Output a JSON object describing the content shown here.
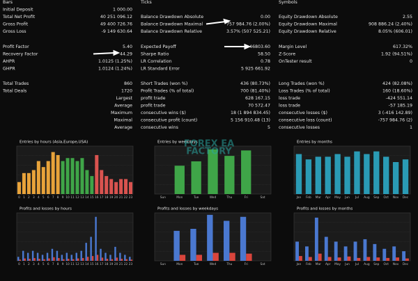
{
  "report": {
    "sections": [
      [
        [
          {
            "label": "Bars"
          },
          {
            "label": "Ticks"
          },
          {
            "label": "Symbols"
          }
        ],
        [
          {
            "label": "Initial Deposit",
            "value": "1 000.00"
          }
        ],
        [
          {
            "label": "Total Net Profit",
            "value": "40 251 096.12"
          },
          {
            "label": "Balance Drawdown Absolute",
            "value": "0.00"
          },
          {
            "label": "Equity Drawdown Absolute",
            "value": "2.55"
          }
        ],
        [
          {
            "label": "Gross Profit",
            "value": "49 400 726.76"
          },
          {
            "label": "Balance Drawdown Maximal",
            "value": "757 984.76 (2.00%)"
          },
          {
            "label": "Equity Drawdown Maximal",
            "value": "908 886.24 (2.40%)"
          }
        ],
        [
          {
            "label": "Gross Loss",
            "value": "-9 149 630.64"
          },
          {
            "label": "Balance Drawdown Relative",
            "value": "3.57% (507 525.21)"
          },
          {
            "label": "Equity Drawdown Relative",
            "value": "8.05% (606.01)"
          }
        ]
      ],
      [
        [
          {
            "label": "Profit Factor",
            "value": "5.40"
          },
          {
            "label": "Expected Payoff",
            "value": "46803.60"
          },
          {
            "label": "Margin Level",
            "value": "617.32%"
          }
        ],
        [
          {
            "label": "Recovery Factor",
            "value": "44.29"
          },
          {
            "label": "Sharpe Ratio",
            "value": "58.50"
          },
          {
            "label": "Z-Score",
            "value": "1.92 (94.51%)"
          }
        ],
        [
          {
            "label": "AHPR",
            "value": "1.0125 (1.25%)"
          },
          {
            "label": "LR Correlation",
            "value": "0.78"
          },
          {
            "label": "OnTester result",
            "value": "0"
          }
        ],
        [
          {
            "label": "GHPR",
            "value": "1.0124 (1.24%)"
          },
          {
            "label": "LR Standard Error",
            "value": "5 925 661.92"
          }
        ]
      ],
      [
        [
          {
            "label": "Total Trades",
            "value": "860"
          },
          {
            "label": "Short Trades (won %)",
            "value": "436 (80.73%)"
          },
          {
            "label": "Long Trades (won %)",
            "value": "424 (82.08%)"
          }
        ],
        [
          {
            "label": "Total Deals",
            "value": "1720"
          },
          {
            "label": "Profit Trades (% of total)",
            "value": "700 (81.40%)"
          },
          {
            "label": "Loss Trades (% of total)",
            "value": "160 (18.60%)"
          }
        ],
        [
          {
            "label": "Largest"
          },
          {
            "label": "profit trade",
            "value": "628 167.15"
          },
          {
            "label": "loss trade",
            "value": "-424 551.14"
          }
        ],
        [
          {
            "label": "Average"
          },
          {
            "label": "profit trade",
            "value": "70 572.47"
          },
          {
            "label": "loss trade",
            "value": "-57 185.19"
          }
        ],
        [
          {
            "label": "Maximum"
          },
          {
            "label": "consecutive wins ($)",
            "value": "18 (1 894 834.45)"
          },
          {
            "label": "consecutive losses ($)",
            "value": "3 (-416 142.89)"
          }
        ],
        [
          {
            "label": "Maximal"
          },
          {
            "label": "consecutive profit (count)",
            "value": "5 156 910.48 (13)"
          },
          {
            "label": "consecutive loss (count)",
            "value": "-757 984.76 (2)"
          }
        ],
        [
          {
            "label": "Average"
          },
          {
            "label": "consecutive wins",
            "value": "5"
          },
          {
            "label": "consecutive losses",
            "value": "1"
          }
        ]
      ]
    ]
  },
  "watermark": [
    "FOREX EA",
    "FACTORY"
  ],
  "chart_data": [
    {
      "type": "bar",
      "title": "Entries by hours (Asia,Europe,USA)",
      "categories": [
        "0",
        "1",
        "2",
        "3",
        "4",
        "5",
        "6",
        "7",
        "8",
        "9",
        "10",
        "11",
        "12",
        "13",
        "14",
        "15",
        "16",
        "17",
        "18",
        "19",
        "20",
        "21",
        "22",
        "23"
      ],
      "series": [
        {
          "colors": [
            "#e8a33a",
            "#e8a33a",
            "#e8a33a",
            "#e8a33a",
            "#e8a33a",
            "#e8a33a",
            "#e8a33a",
            "#e8a33a",
            "#e8a33a",
            "#3fa548",
            "#3fa548",
            "#3fa548",
            "#3fa548",
            "#3fa548",
            "#3fa548",
            "#3fa548",
            "#d9534f",
            "#d9534f",
            "#d9534f",
            "#d9534f",
            "#d9534f",
            "#d9534f",
            "#d9534f",
            "#d9534f"
          ],
          "values": [
            20,
            35,
            35,
            40,
            55,
            45,
            55,
            70,
            65,
            55,
            60,
            60,
            55,
            60,
            40,
            30,
            65,
            40,
            30,
            25,
            20,
            25,
            25,
            20
          ]
        }
      ],
      "ylim": [
        0,
        80
      ]
    },
    {
      "type": "bar",
      "title": "Entries by weekdays",
      "categories": [
        "Sun",
        "Mon",
        "Tue",
        "Wed",
        "Thu",
        "Fri",
        "Sat"
      ],
      "series": [
        {
          "color": "#3fa548",
          "values": [
            0,
            130,
            150,
            205,
            175,
            200,
            0
          ]
        }
      ],
      "ylim": [
        0,
        220
      ]
    },
    {
      "type": "bar",
      "title": "Entries by months",
      "categories": [
        "Jan",
        "Feb",
        "Mar",
        "Apr",
        "May",
        "Jun",
        "Jul",
        "Aug",
        "Sep",
        "Oct",
        "Nov",
        "Dec"
      ],
      "series": [
        {
          "color": "#2a9bb5",
          "values": [
            75,
            65,
            70,
            70,
            75,
            70,
            80,
            75,
            80,
            70,
            60,
            65
          ]
        }
      ],
      "ylim": [
        0,
        90
      ]
    },
    {
      "type": "bar",
      "title": "Profits and losses by hours",
      "categories": [
        "0",
        "1",
        "2",
        "3",
        "4",
        "5",
        "6",
        "7",
        "8",
        "9",
        "10",
        "11",
        "12",
        "13",
        "14",
        "15",
        "16",
        "17",
        "18",
        "19",
        "20",
        "21",
        "22",
        "23"
      ],
      "series": [
        {
          "color": "#4a78d0",
          "values": [
            1.0,
            2.5,
            2.0,
            2.5,
            2.0,
            1.5,
            2.0,
            3.0,
            2.5,
            1.5,
            2.0,
            1.5,
            2.0,
            2.5,
            4.5,
            6.0,
            11.0,
            3.0,
            2.0,
            1.5,
            3.5,
            2.0,
            1.5,
            1.0
          ]
        },
        {
          "color": "#d9453c",
          "values": [
            0.3,
            0.6,
            0.5,
            0.7,
            0.5,
            0.4,
            0.6,
            0.9,
            0.7,
            0.4,
            0.5,
            0.4,
            0.6,
            0.7,
            1.0,
            1.2,
            1.5,
            0.8,
            0.5,
            0.4,
            0.8,
            0.5,
            0.4,
            0.3
          ]
        }
      ],
      "ylim": [
        0,
        12
      ]
    },
    {
      "type": "bar",
      "title": "Profits and losses by weekdays",
      "categories": [
        "Sun",
        "Mon",
        "Tue",
        "Wed",
        "Thu",
        "Fri",
        "Sat"
      ],
      "series": [
        {
          "color": "#4a78d0",
          "values": [
            0,
            7.5,
            8.0,
            11.5,
            10.0,
            11.0,
            0
          ]
        },
        {
          "color": "#d9453c",
          "values": [
            0,
            1.5,
            1.5,
            2.0,
            2.0,
            1.8,
            0
          ]
        }
      ],
      "ylim": [
        0,
        12
      ]
    },
    {
      "type": "bar",
      "title": "Profits and losses by months",
      "categories": [
        "Jan",
        "Feb",
        "Mar",
        "Apr",
        "May",
        "Jun",
        "Jul",
        "Aug",
        "Sep",
        "Oct",
        "Nov",
        "Dec"
      ],
      "series": [
        {
          "color": "#4a78d0",
          "values": [
            4,
            3,
            9,
            5,
            4,
            3,
            4,
            4.5,
            3.5,
            2.5,
            3,
            2
          ]
        },
        {
          "color": "#d9453c",
          "values": [
            1.0,
            0.8,
            1.5,
            0.8,
            0.7,
            0.9,
            0.6,
            0.8,
            0.7,
            0.6,
            0.7,
            0.5
          ]
        }
      ],
      "ylim": [
        0,
        10
      ]
    }
  ]
}
